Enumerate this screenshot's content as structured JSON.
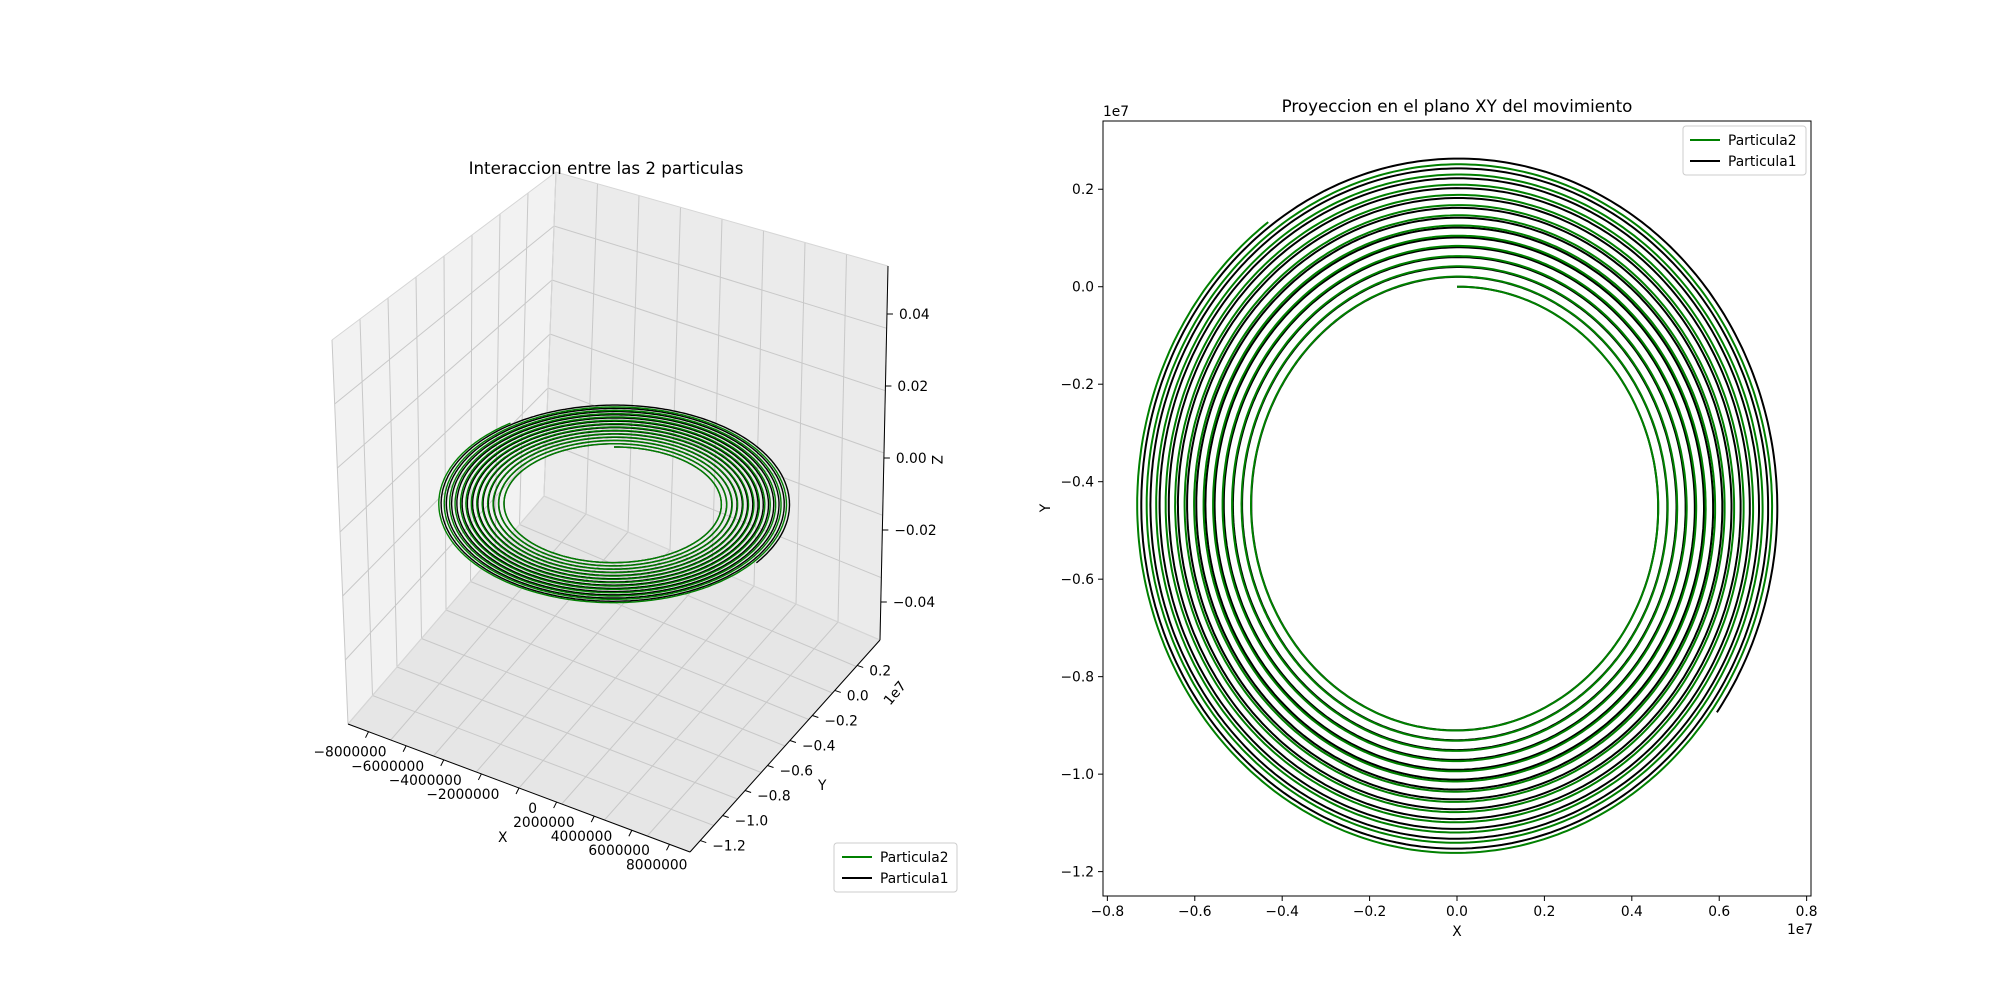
{
  "chart_data": [
    {
      "type": "line",
      "projection": "3d",
      "title": "Interaccion entre las 2 particulas",
      "xlabel": "X",
      "ylabel": "Y",
      "zlabel": "Z",
      "y_offset_label": "1e7",
      "xticks": [
        "−8000000",
        "−6000000",
        "−4000000",
        "−2000000",
        "0",
        "2000000",
        "4000000",
        "6000000",
        "8000000"
      ],
      "yticks": [
        "0.2",
        "0.0",
        "−0.2",
        "−0.4",
        "−0.6",
        "−0.8",
        "−1.0",
        "−1.2"
      ],
      "zticks": [
        "0.04",
        "0.02",
        "0.00",
        "−0.02",
        "−0.04"
      ],
      "xlim": [
        -8000000,
        8000000
      ],
      "ylim": [
        -12000000,
        2000000
      ],
      "zlim": [
        -0.05,
        0.05
      ],
      "grid": true,
      "legend_position": "lower-right",
      "series": [
        {
          "name": "Particula2",
          "color": "#008000",
          "z": 0
        },
        {
          "name": "Particula1",
          "color": "#000000",
          "z": 0
        }
      ]
    },
    {
      "type": "line",
      "title": "Proyeccion en el plano XY del movimiento",
      "xlabel": "X",
      "ylabel": "Y",
      "x_offset_label": "1e7",
      "y_offset_label": "1e7",
      "xticks": [
        "−0.8",
        "−0.6",
        "−0.4",
        "−0.2",
        "0.0",
        "0.2",
        "0.4",
        "0.6",
        "0.8"
      ],
      "yticks": [
        "0.2",
        "0.0",
        "−0.2",
        "−0.4",
        "−0.6",
        "−0.8",
        "−1.0",
        "−1.2"
      ],
      "xlim": [
        -0.81,
        0.81
      ],
      "ylim": [
        -1.25,
        0.34
      ],
      "grid": false,
      "legend_position": "top-right",
      "series": [
        {
          "name": "Particula2",
          "color": "#008000",
          "spiral": {
            "center_x": 0.0,
            "center_y": -0.45,
            "a_start": 0.455,
            "a_end": 0.735,
            "b_start": 0.45,
            "b_end": 0.72,
            "turns": 12.9
          }
        },
        {
          "name": "Particula1",
          "color": "#000000",
          "spiral": {
            "center_x": 0.0,
            "center_y": -0.45,
            "a_start": 0.455,
            "a_end": 0.735,
            "b_start": 0.45,
            "b_end": 0.72,
            "turns": 13.35
          }
        }
      ]
    }
  ]
}
